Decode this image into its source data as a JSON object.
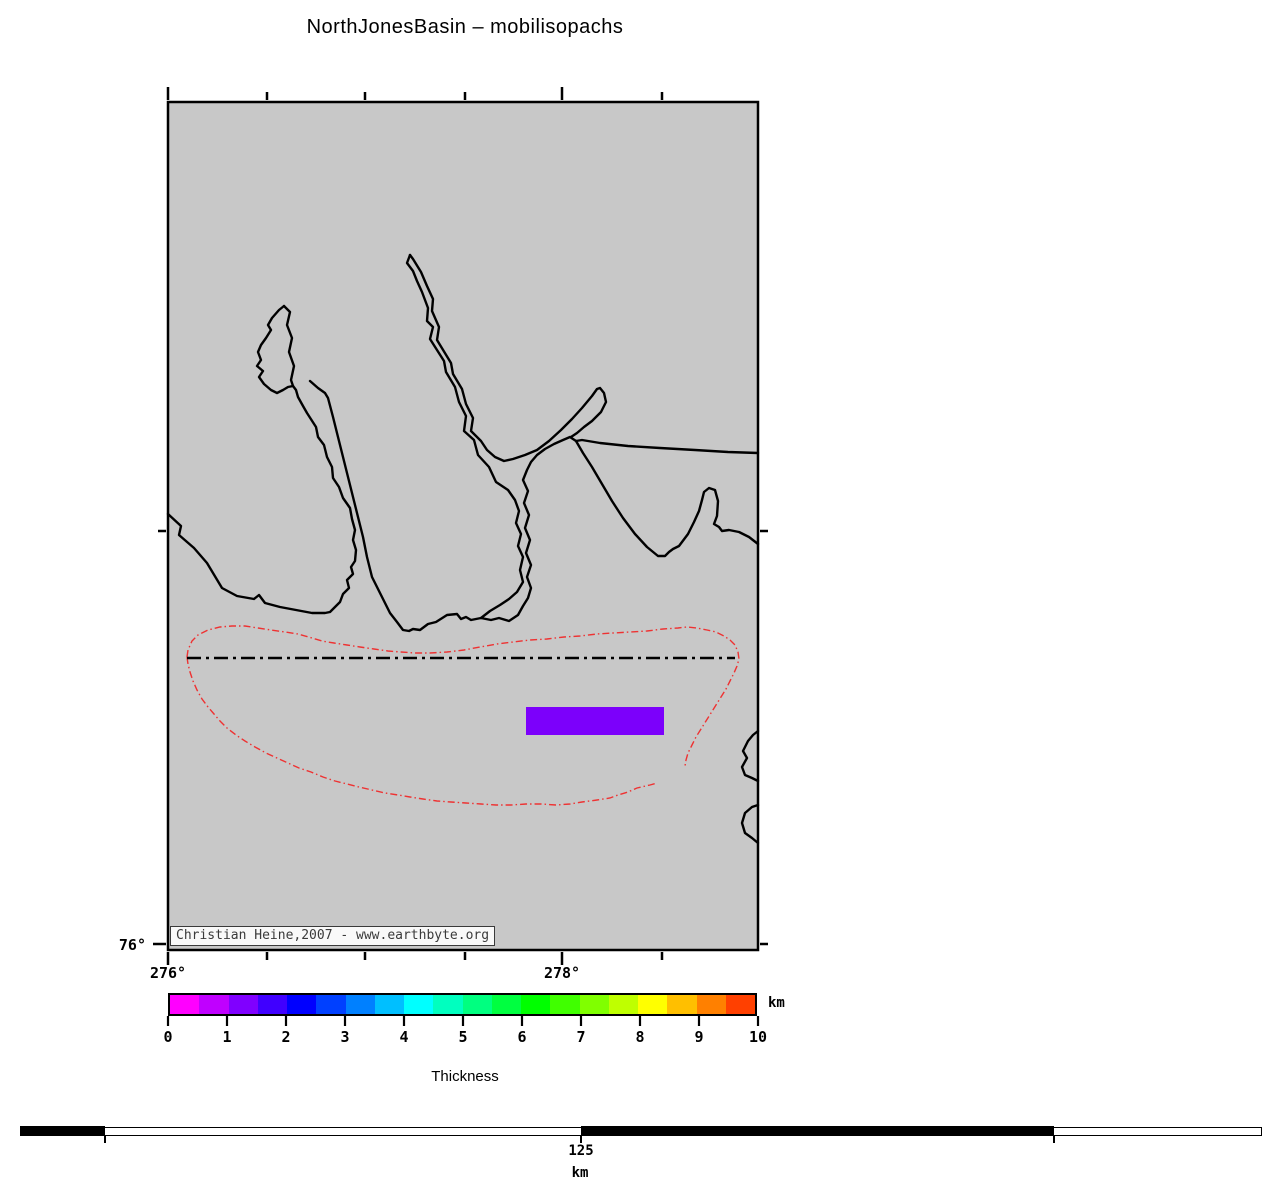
{
  "title": "NorthJonesBasin – mobilisopachs",
  "map": {
    "background_color": "#C8C8C8",
    "coastline_color": "#000000",
    "isopach_contour_color": "#EE3232",
    "cob_line_color": "#000000",
    "isopach_patch_color": "#7C00FB",
    "watermark": "Christian Heine,2007 - www.earthbyte.org",
    "axis": {
      "left_latitude_label": "76°",
      "bottom_longitude_labels": [
        "276°",
        "278°"
      ]
    }
  },
  "colorbar": {
    "label": "Thickness",
    "unit": "km",
    "ticks": [
      "0",
      "1",
      "2",
      "3",
      "4",
      "5",
      "6",
      "7",
      "8",
      "9",
      "10"
    ],
    "colors": [
      "#FF00FF",
      "#C000FF",
      "#8000FF",
      "#4000FF",
      "#0000FF",
      "#0040FF",
      "#0080FF",
      "#00BFFF",
      "#00FFFF",
      "#00FFBF",
      "#00FF80",
      "#00FF40",
      "#00FF00",
      "#40FF00",
      "#80FF00",
      "#BFFF00",
      "#FFFF00",
      "#FFBF00",
      "#FF8000",
      "#FF4000"
    ]
  },
  "scalebar": {
    "distance": "125",
    "unit": "km"
  }
}
